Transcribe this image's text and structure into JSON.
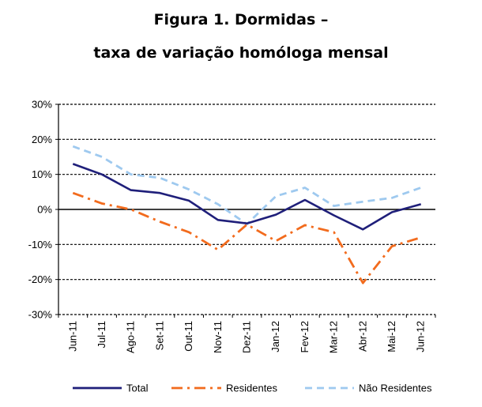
{
  "chart_data": {
    "type": "line",
    "title_line1": "Figura 1. Dormidas –",
    "title_line2": "taxa de variação homóloga mensal",
    "xlabel": "",
    "ylabel": "",
    "ylim": [
      -30,
      30
    ],
    "yticks": [
      30,
      20,
      10,
      0,
      -10,
      -20,
      -30
    ],
    "ytick_labels": [
      "30%",
      "20%",
      "10%",
      "0%",
      "-10%",
      "-20%",
      "-30%"
    ],
    "grid": "horizontal dashed",
    "legend_position": "bottom",
    "categories": [
      "Jun-11",
      "Jul-11",
      "Ago-11",
      "Set-11",
      "Out-11",
      "Nov-11",
      "Dez-11",
      "Jan-12",
      "Fev-12",
      "Mar-12",
      "Abr-12",
      "Mai-12",
      "Jun-12"
    ],
    "series": [
      {
        "name": "Total",
        "color": "#1f1f7a",
        "style": "solid",
        "values": [
          13.0,
          10.0,
          5.5,
          4.7,
          2.5,
          -3.0,
          -4.0,
          -1.5,
          2.7,
          -1.7,
          -5.7,
          -0.8,
          1.5
        ]
      },
      {
        "name": "Residentes",
        "color": "#f26b1d",
        "style": "dashdot",
        "values": [
          4.7,
          1.7,
          0.0,
          -3.5,
          -6.5,
          -11.5,
          -4.3,
          -9.0,
          -4.5,
          -6.5,
          -21.0,
          -10.5,
          -8.0
        ]
      },
      {
        "name": "Não Residentes",
        "color": "#9ec9ef",
        "style": "dashed",
        "values": [
          18.0,
          15.0,
          10.0,
          9.0,
          5.7,
          1.5,
          -4.2,
          3.8,
          6.2,
          1.0,
          2.2,
          3.3,
          6.2
        ]
      }
    ]
  }
}
